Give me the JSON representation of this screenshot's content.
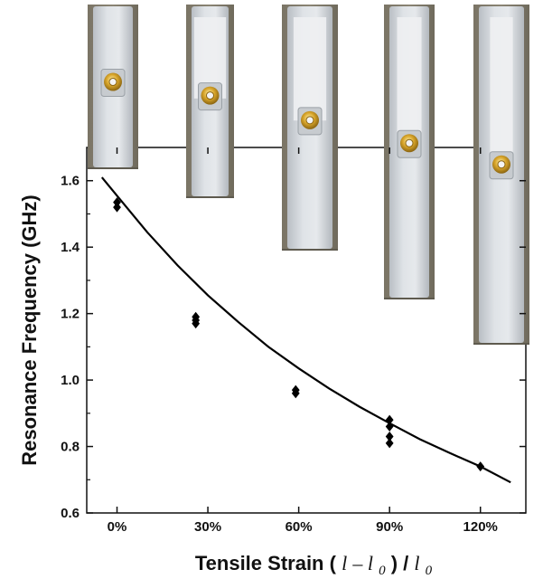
{
  "chart_data": {
    "type": "scatter",
    "xlabel": "Tensile Strain",
    "xlabel_formula": {
      "open": "(",
      "l1": "l",
      "minus": " – ",
      "l2": "l",
      "sub1": "0",
      "mid": ")",
      "slash": " / ",
      "l3": "l",
      "sub2": "0"
    },
    "ylabel": "Resonance Frequency (GHz)",
    "xlim": [
      -0.1,
      1.35
    ],
    "ylim": [
      0.6,
      1.7
    ],
    "x_ticks": [
      0,
      0.3,
      0.6,
      0.9,
      1.2
    ],
    "x_tick_labels": [
      "0%",
      "30%",
      "60%",
      "90%",
      "120%"
    ],
    "y_ticks": [
      0.6,
      0.8,
      1.0,
      1.2,
      1.4,
      1.6
    ],
    "y_tick_labels": [
      "0.6",
      "0.8",
      "1.0",
      "1.2",
      "1.4",
      "1.6"
    ],
    "series": [
      {
        "marker": "diamond",
        "color": "#000000",
        "points": [
          [
            0.0,
            1.535
          ],
          [
            0.0,
            1.52
          ],
          [
            0.26,
            1.19
          ],
          [
            0.26,
            1.18
          ],
          [
            0.26,
            1.17
          ],
          [
            0.59,
            0.97
          ],
          [
            0.59,
            0.96
          ],
          [
            0.9,
            0.88
          ],
          [
            0.9,
            0.86
          ],
          [
            0.9,
            0.83
          ],
          [
            0.9,
            0.81
          ],
          [
            1.2,
            0.74
          ]
        ]
      },
      {
        "type": "line",
        "color": "#000000",
        "points": [
          [
            -0.05,
            1.61
          ],
          [
            0.0,
            1.555
          ],
          [
            0.1,
            1.445
          ],
          [
            0.2,
            1.345
          ],
          [
            0.3,
            1.255
          ],
          [
            0.4,
            1.175
          ],
          [
            0.5,
            1.1
          ],
          [
            0.6,
            1.035
          ],
          [
            0.7,
            0.975
          ],
          [
            0.8,
            0.92
          ],
          [
            0.9,
            0.87
          ],
          [
            1.0,
            0.822
          ],
          [
            1.1,
            0.78
          ],
          [
            1.2,
            0.74
          ],
          [
            1.3,
            0.692
          ]
        ]
      }
    ],
    "photo_insets": 5
  }
}
